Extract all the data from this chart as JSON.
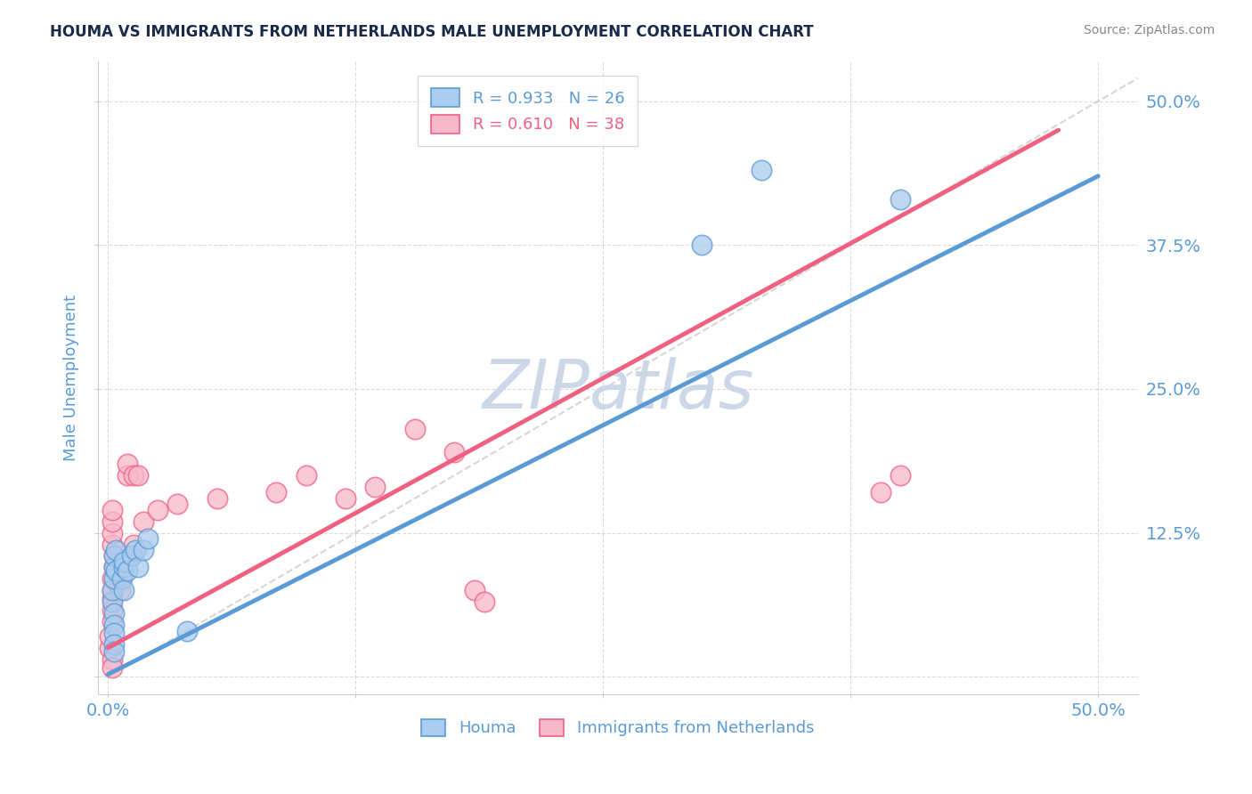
{
  "title": "HOUMA VS IMMIGRANTS FROM NETHERLANDS MALE UNEMPLOYMENT CORRELATION CHART",
  "source": "Source: ZipAtlas.com",
  "ylabel": "Male Unemployment",
  "x_ticks": [
    0.0,
    0.125,
    0.25,
    0.375,
    0.5
  ],
  "x_tick_labels": [
    "0.0%",
    "",
    "",
    "",
    "50.0%"
  ],
  "y_ticks": [
    0.0,
    0.125,
    0.25,
    0.375,
    0.5
  ],
  "y_tick_labels": [
    "",
    "12.5%",
    "25.0%",
    "37.5%",
    "50.0%"
  ],
  "xlim": [
    -0.005,
    0.52
  ],
  "ylim": [
    -0.015,
    0.535
  ],
  "legend_entries": [
    {
      "label": "R = 0.933   N = 26",
      "color": "#5b9bd5"
    },
    {
      "label": "R = 0.610   N = 38",
      "color": "#f06080"
    }
  ],
  "legend_labels_bottom": [
    "Houma",
    "Immigrants from Netherlands"
  ],
  "houma_scatter": [
    [
      0.002,
      0.065
    ],
    [
      0.002,
      0.075
    ],
    [
      0.003,
      0.085
    ],
    [
      0.003,
      0.055
    ],
    [
      0.003,
      0.095
    ],
    [
      0.003,
      0.045
    ],
    [
      0.003,
      0.038
    ],
    [
      0.003,
      0.028
    ],
    [
      0.003,
      0.022
    ],
    [
      0.003,
      0.105
    ],
    [
      0.004,
      0.092
    ],
    [
      0.004,
      0.11
    ],
    [
      0.007,
      0.085
    ],
    [
      0.008,
      0.095
    ],
    [
      0.008,
      0.1
    ],
    [
      0.008,
      0.075
    ],
    [
      0.01,
      0.092
    ],
    [
      0.012,
      0.105
    ],
    [
      0.014,
      0.11
    ],
    [
      0.015,
      0.095
    ],
    [
      0.018,
      0.11
    ],
    [
      0.02,
      0.12
    ],
    [
      0.04,
      0.04
    ],
    [
      0.3,
      0.375
    ],
    [
      0.33,
      0.44
    ],
    [
      0.4,
      0.415
    ]
  ],
  "netherlands_scatter": [
    [
      0.001,
      0.025
    ],
    [
      0.001,
      0.035
    ],
    [
      0.002,
      0.048
    ],
    [
      0.002,
      0.058
    ],
    [
      0.002,
      0.068
    ],
    [
      0.002,
      0.075
    ],
    [
      0.002,
      0.085
    ],
    [
      0.003,
      0.095
    ],
    [
      0.003,
      0.105
    ],
    [
      0.002,
      0.015
    ],
    [
      0.002,
      0.008
    ],
    [
      0.002,
      0.115
    ],
    [
      0.002,
      0.125
    ],
    [
      0.002,
      0.135
    ],
    [
      0.002,
      0.145
    ],
    [
      0.006,
      0.075
    ],
    [
      0.007,
      0.088
    ],
    [
      0.008,
      0.098
    ],
    [
      0.01,
      0.175
    ],
    [
      0.01,
      0.185
    ],
    [
      0.013,
      0.175
    ],
    [
      0.015,
      0.175
    ],
    [
      0.012,
      0.105
    ],
    [
      0.013,
      0.115
    ],
    [
      0.018,
      0.135
    ],
    [
      0.025,
      0.145
    ],
    [
      0.035,
      0.15
    ],
    [
      0.055,
      0.155
    ],
    [
      0.085,
      0.16
    ],
    [
      0.1,
      0.175
    ],
    [
      0.12,
      0.155
    ],
    [
      0.135,
      0.165
    ],
    [
      0.155,
      0.215
    ],
    [
      0.175,
      0.195
    ],
    [
      0.185,
      0.075
    ],
    [
      0.19,
      0.065
    ],
    [
      0.4,
      0.175
    ],
    [
      0.39,
      0.16
    ]
  ],
  "houma_line_x": [
    0.0,
    0.5
  ],
  "houma_line_y": [
    0.002,
    0.435
  ],
  "netherlands_line_x": [
    0.0,
    0.48
  ],
  "netherlands_line_y": [
    0.025,
    0.475
  ],
  "diag_line_x": [
    0.0,
    0.52
  ],
  "diag_line_y": [
    0.0,
    0.52
  ],
  "blue_color": "#5b9bd5",
  "pink_color": "#f06080",
  "blue_scatter_color": "#aaccee",
  "pink_scatter_color": "#f8b8cc",
  "title_color": "#1a2a4a",
  "tick_label_color": "#5b9bd5",
  "source_color": "#888888",
  "watermark_color": "#ccd8e8",
  "grid_color": "#cccccc",
  "background_color": "#ffffff"
}
